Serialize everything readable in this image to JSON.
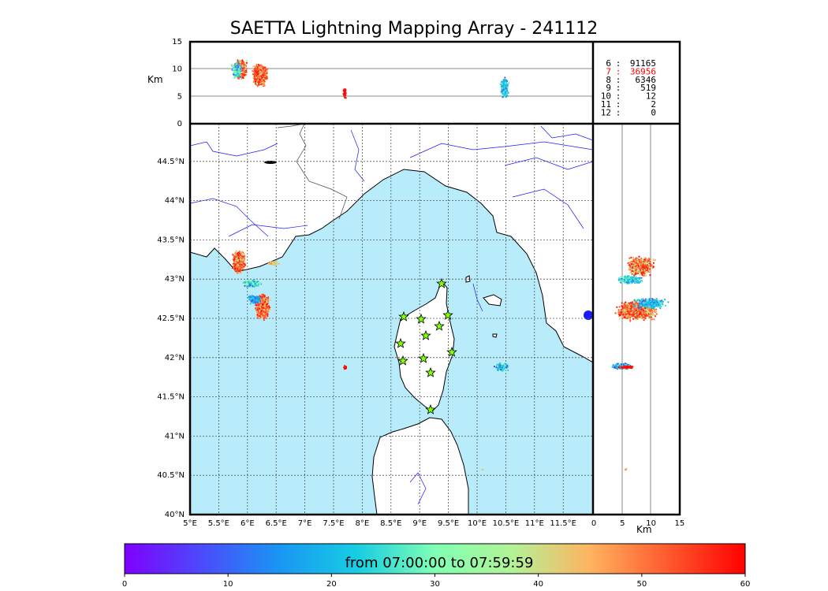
{
  "title": "SAETTA Lightning Mapping Array - 241112",
  "top_panel": {
    "ylabel": "Km",
    "yticks": [
      "0",
      "5",
      "10",
      "15"
    ]
  },
  "side_panel": {
    "xlabel": "Km",
    "xticks": [
      "0",
      "5",
      "10",
      "15"
    ]
  },
  "map": {
    "lon_ticks": [
      "5°E",
      "5.5°E",
      "6°E",
      "6.5°E",
      "7°E",
      "7.5°E",
      "8°E",
      "8.5°E",
      "9°E",
      "9.5°E",
      "10°E",
      "10.5°E",
      "11°E",
      "11.5°E"
    ],
    "lat_ticks": [
      "40°N",
      "40.5°N",
      "41°N",
      "41.5°N",
      "42°N",
      "42.5°N",
      "43°N",
      "43.5°N",
      "44°N",
      "44.5°N"
    ],
    "sea_color": "#b8ecfb",
    "station_marker": "green-star-icon"
  },
  "source_counts": {
    "rows": [
      {
        "n": "6",
        "sep": ":",
        "count": "91165",
        "color": "#000000"
      },
      {
        "n": "7",
        "sep": ":",
        "count": "36956",
        "color": "#ff0000"
      },
      {
        "n": "8",
        "sep": ":",
        "count": "6346",
        "color": "#000000"
      },
      {
        "n": "9",
        "sep": ":",
        "count": "519",
        "color": "#000000"
      },
      {
        "n": "10",
        "sep": ":",
        "count": "12",
        "color": "#000000"
      },
      {
        "n": "11",
        "sep": ":",
        "count": "2",
        "color": "#000000"
      },
      {
        "n": "12",
        "sep": ":",
        "count": "0",
        "color": "#000000"
      }
    ]
  },
  "colorbar": {
    "caption": "from 07:00:00 to 07:59:59",
    "ticks": [
      "0",
      "10",
      "20",
      "30",
      "40",
      "50",
      "60"
    ],
    "colormap": "rainbow"
  }
}
